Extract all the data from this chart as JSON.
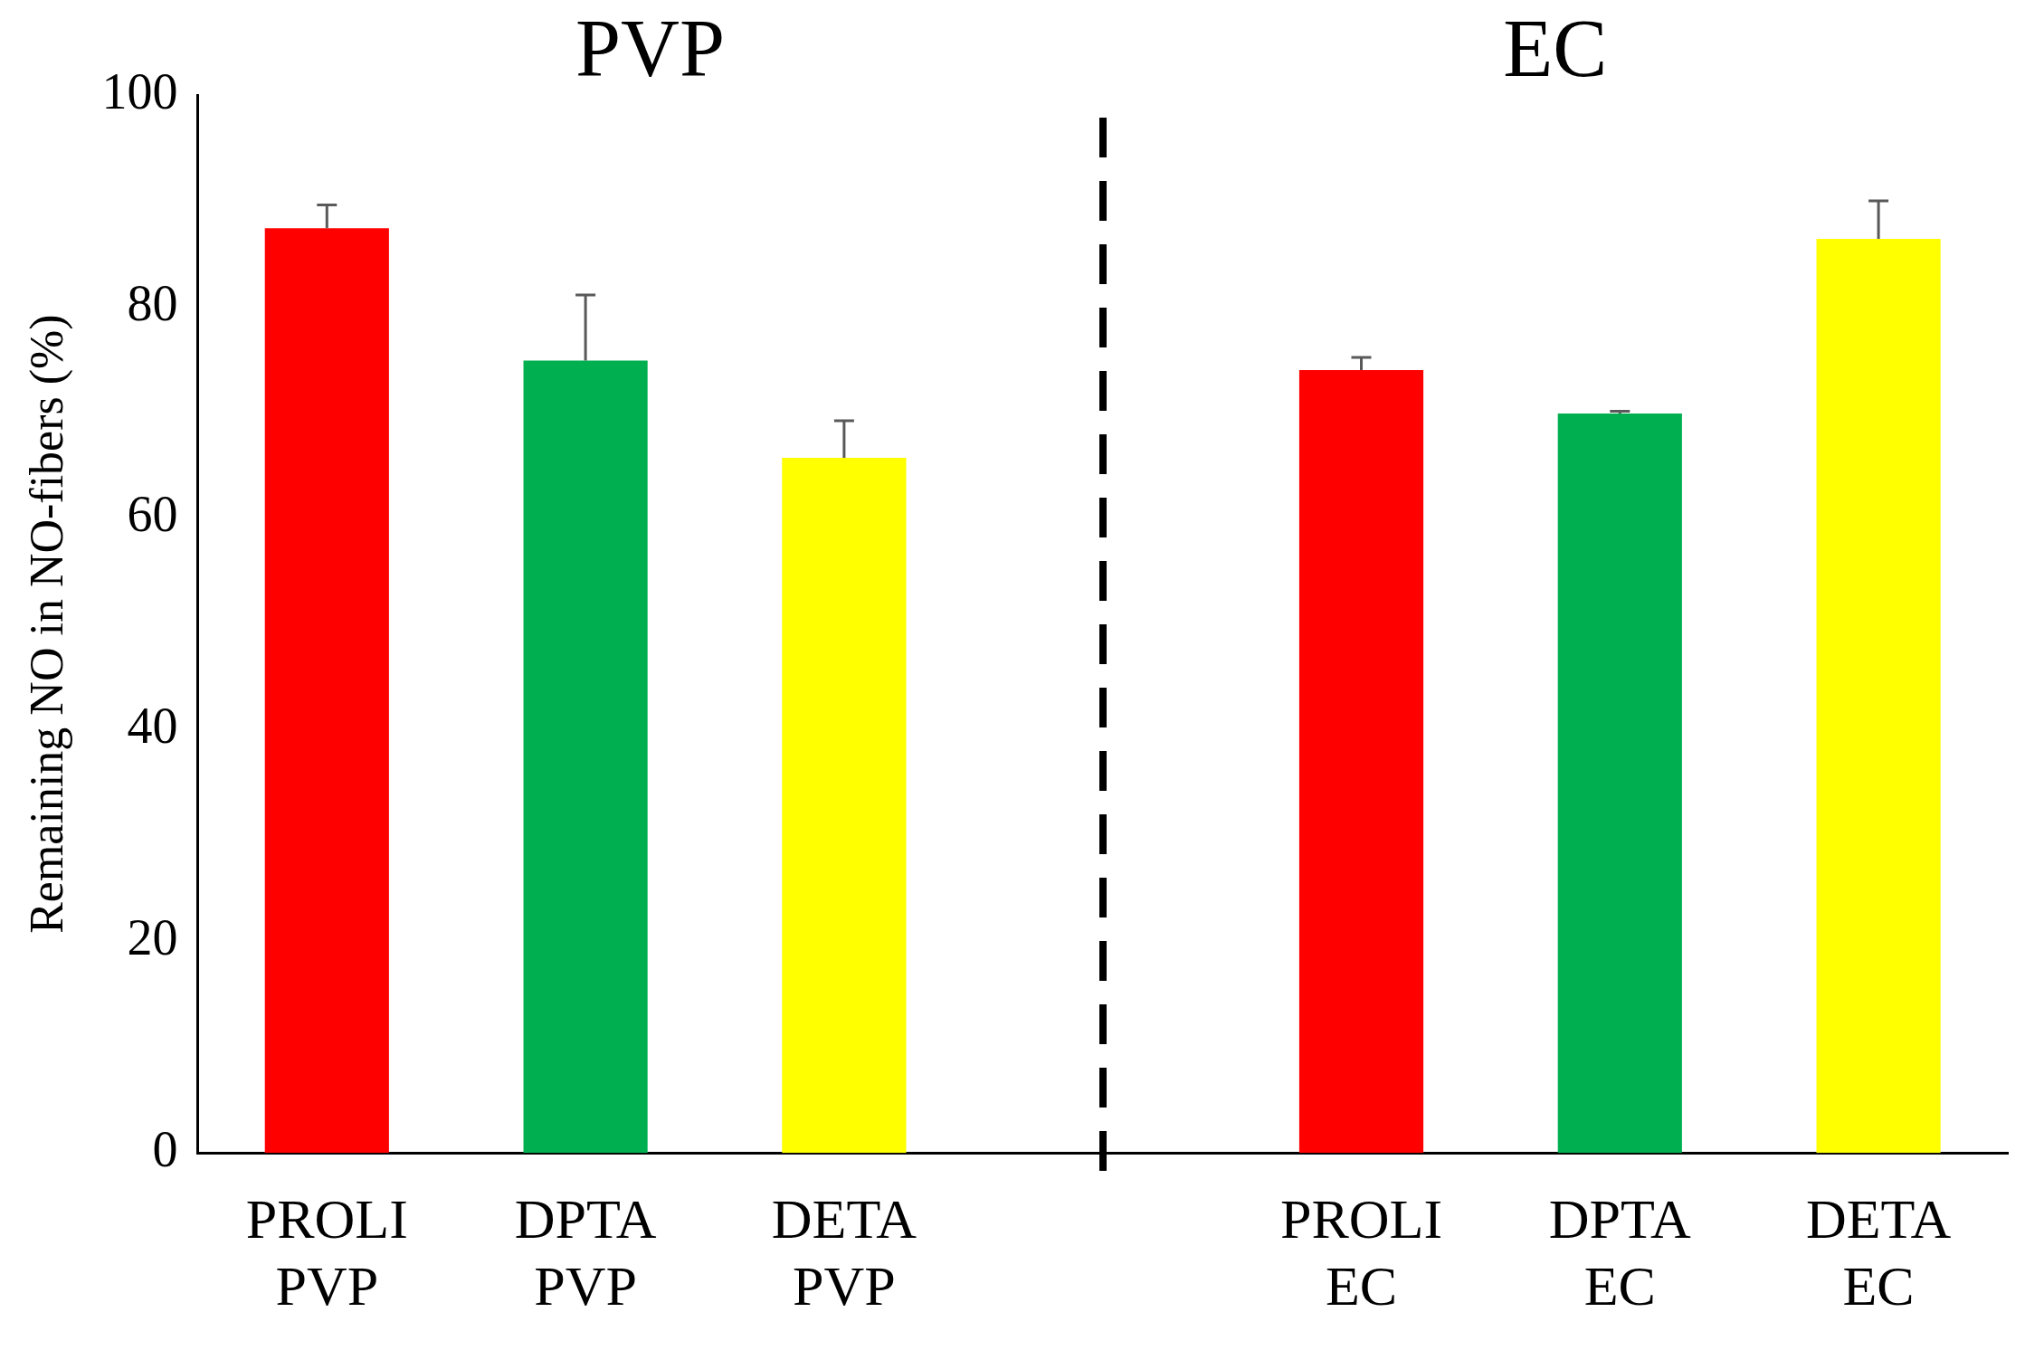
{
  "chart_data": {
    "type": "bar",
    "ylabel": "Remaining NO in NO-fibers (%)",
    "annotations": [
      "PVP",
      "EC"
    ],
    "categories": [
      "PROLI\nPVP",
      "DPTA\nPVP",
      "DETA\nPVP",
      null,
      "PROLI\nEC",
      "DPTA\nEC",
      "DETA\nEC"
    ],
    "values": [
      87.4,
      74.9,
      65.7,
      null,
      74.0,
      69.9,
      86.4
    ],
    "colors": [
      "#ff0000",
      "#00b050",
      "#ffff00",
      null,
      "#ff0000",
      "#00b050",
      "#ffff00"
    ],
    "errors": [
      [
        87.4,
        89.6
      ],
      [
        74.9,
        81.1
      ],
      [
        65.7,
        69.2
      ],
      null,
      [
        74.0,
        75.2
      ],
      [
        69.9,
        70.1
      ],
      [
        86.4,
        90.0
      ]
    ],
    "ylim": [
      0,
      100
    ],
    "yticks": [
      0,
      20,
      40,
      60,
      80,
      100
    ],
    "grid": false,
    "legend": false
  }
}
